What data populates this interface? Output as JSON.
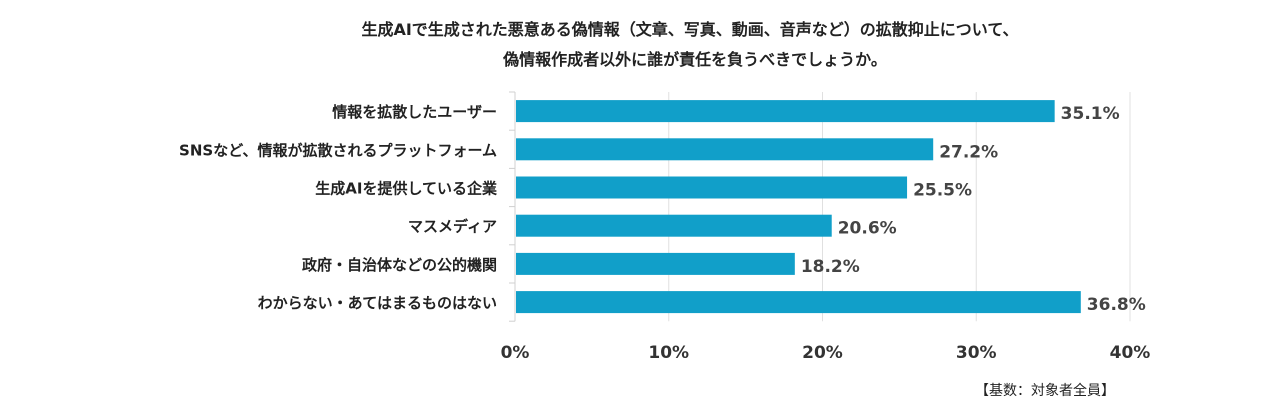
{
  "chart_data": {
    "type": "bar",
    "orientation": "horizontal",
    "title": [
      "生成AIで生成された悪意ある偽情報（文章、写真、動画、音声など）の拡散抑止について、",
      "偽情報作成者以外に誰が責任を負うべきでしょうか。"
    ],
    "categories": [
      "情報を拡散したユーザー",
      "SNSなど、情報が拡散されるプラットフォーム",
      "生成AIを提供している企業",
      "マスメディア",
      "政府・自治体などの公的機関",
      "わからない・あてはまるものはない"
    ],
    "values": [
      35.1,
      27.2,
      25.5,
      20.6,
      18.2,
      36.8
    ],
    "data_labels": [
      "35.1%",
      "27.2%",
      "25.5%",
      "20.6%",
      "18.2%",
      "36.8%"
    ],
    "xlim": [
      0,
      40
    ],
    "ticks": [
      "0%",
      "10%",
      "20%",
      "30%",
      "40%"
    ],
    "grid": true,
    "bar_color": "#119fc9",
    "footnote": "【基数：対象者全員】"
  }
}
